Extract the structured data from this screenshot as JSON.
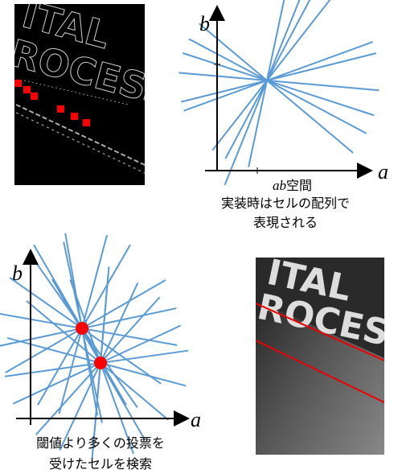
{
  "photo_top": {
    "texts": [
      "ITAL",
      "ROCESS"
    ]
  },
  "ab_space": {
    "axis_b": "b",
    "axis_a": "a",
    "caption_var": "ab",
    "caption_word": "空間",
    "note_lines": [
      "実装時はセルの配列で",
      "表現される"
    ]
  },
  "vote_space": {
    "axis_b": "b",
    "axis_a": "a",
    "caption_lines": [
      "閾値より多くの投票を",
      "受けたセルを検索"
    ]
  },
  "photo_bottom": {
    "texts": [
      "ITAL",
      "ROCESS"
    ]
  }
}
